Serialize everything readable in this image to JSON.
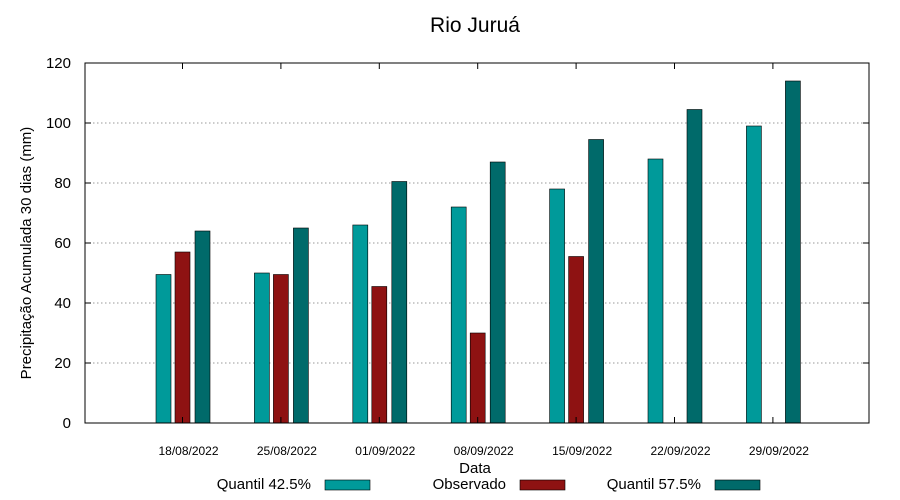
{
  "chart_data": {
    "type": "bar",
    "title": "Rio Juruá",
    "xlabel": "Data",
    "ylabel": "Precipitação Acumulada 30 dias (mm)",
    "ylim": [
      0,
      120
    ],
    "yticks": [
      0,
      20,
      40,
      60,
      80,
      100,
      120
    ],
    "grid": true,
    "legend_position": "bottom",
    "categories": [
      "18/08/2022",
      "25/08/2022",
      "01/09/2022",
      "08/09/2022",
      "15/09/2022",
      "22/09/2022",
      "29/09/2022"
    ],
    "series": [
      {
        "name": "Quantil 42.5%",
        "color": "#009a9a",
        "values": [
          49.5,
          50,
          66,
          72,
          78,
          88,
          99
        ]
      },
      {
        "name": "Observado",
        "color": "#8e1212",
        "values": [
          57,
          49.5,
          45.5,
          30,
          55.5,
          null,
          null
        ]
      },
      {
        "name": "Quantil 57.5%",
        "color": "#006a6a",
        "values": [
          64,
          65,
          80.5,
          87,
          94.5,
          104.5,
          114
        ]
      }
    ]
  }
}
